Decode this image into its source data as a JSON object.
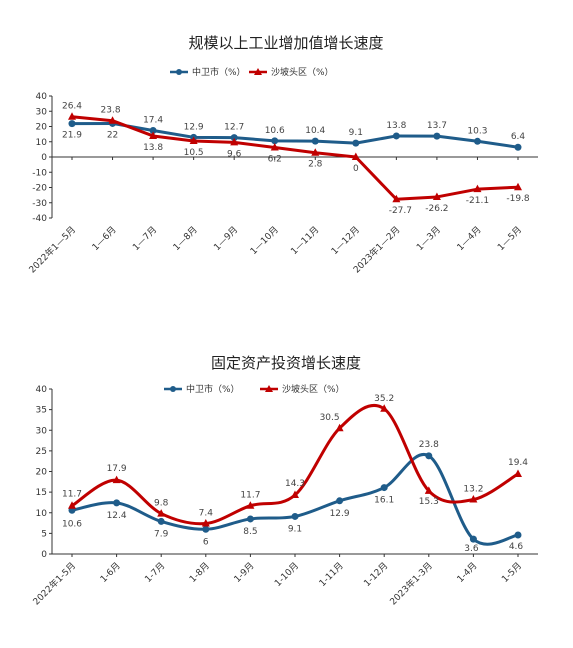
{
  "chart_data": [
    {
      "type": "line",
      "title": "规模以上工业增加值增长速度",
      "categories": [
        "2022年1—5月",
        "1—6月",
        "1—7月",
        "1—8月",
        "1—9月",
        "1—10月",
        "1—11月",
        "1—12月",
        "2023年1—2月",
        "1—3月",
        "1—4月",
        "1—5月"
      ],
      "series": [
        {
          "name": "中卫市（%）",
          "color": "#1f5c8a",
          "marker": "circle",
          "values": [
            21.9,
            22.0,
            17.4,
            12.9,
            12.7,
            10.6,
            10.4,
            9.1,
            13.8,
            13.7,
            10.3,
            6.4
          ]
        },
        {
          "name": "沙坡头区（%）",
          "color": "#c00000",
          "marker": "triangle",
          "values": [
            26.4,
            23.8,
            13.8,
            10.5,
            9.6,
            6.2,
            2.8,
            0,
            -27.7,
            -26.2,
            -21.1,
            -19.8
          ]
        }
      ],
      "ylim": [
        -40,
        40
      ],
      "yticks": [
        -40,
        -30,
        -20,
        -10,
        0,
        10,
        20,
        30,
        40
      ],
      "grid": false,
      "legend": "top"
    },
    {
      "type": "line",
      "title": "固定资产投资增长速度",
      "categories": [
        "2022年1-5月",
        "1-6月",
        "1-7月",
        "1-8月",
        "1-9月",
        "1-10月",
        "1-11月",
        "1-12月",
        "2023年1-3月",
        "1-4月",
        "1-5月"
      ],
      "series": [
        {
          "name": "中卫市（%）",
          "color": "#1f5c8a",
          "marker": "circle",
          "values": [
            10.6,
            12.4,
            7.9,
            6.0,
            8.5,
            9.1,
            12.9,
            16.1,
            23.8,
            3.6,
            4.6
          ]
        },
        {
          "name": "沙坡头区（%）",
          "color": "#c00000",
          "marker": "triangle",
          "values": [
            11.7,
            17.9,
            9.8,
            7.4,
            11.7,
            14.3,
            30.5,
            35.2,
            15.3,
            13.2,
            19.4
          ]
        }
      ],
      "ylim": [
        0,
        40
      ],
      "yticks": [
        0,
        5,
        10,
        15,
        20,
        25,
        30,
        35,
        40
      ],
      "grid": false,
      "legend": "top"
    }
  ]
}
